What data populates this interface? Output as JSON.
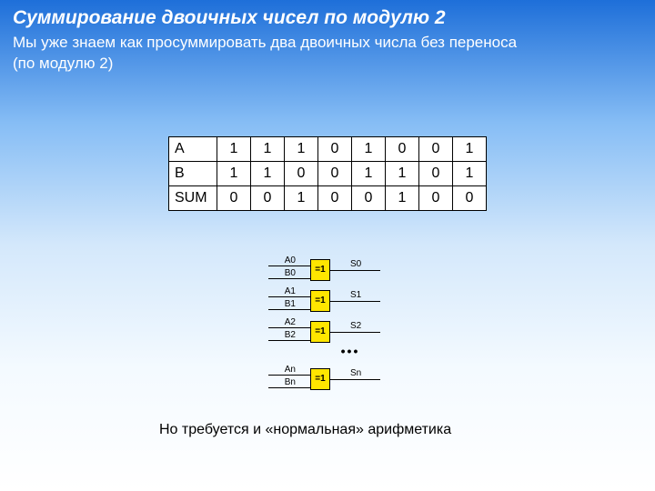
{
  "title": "Суммирование двоичных чисел по модулю 2",
  "intro_line1": "Мы уже знаем как просуммировать два двоичных числа без переноса",
  "intro_line2": "(по модулю 2)",
  "table": {
    "rows": [
      {
        "label": "A",
        "bits": [
          "1",
          "1",
          "1",
          "0",
          "1",
          "0",
          "0",
          "1"
        ]
      },
      {
        "label": "B",
        "bits": [
          "1",
          "1",
          "0",
          "0",
          "1",
          "1",
          "0",
          "1"
        ]
      },
      {
        "label": "SUM",
        "bits": [
          "0",
          "0",
          "1",
          "0",
          "0",
          "1",
          "0",
          "0"
        ]
      }
    ],
    "border_color": "#000000",
    "bg_color": "#ffffff",
    "font_size": 16
  },
  "diagram": {
    "gate_symbol": "=1",
    "gate_color": "#ffe600",
    "gates": [
      {
        "inA": "A0",
        "inB": "B0",
        "out": "S0"
      },
      {
        "inA": "A1",
        "inB": "B1",
        "out": "S1"
      },
      {
        "inA": "A2",
        "inB": "B2",
        "out": "S2"
      }
    ],
    "ellipsis": "•••",
    "last_gate": {
      "inA": "An",
      "inB": "Bn",
      "out": "Sn"
    }
  },
  "footnote": "Но требуется и «нормальная» арифметика",
  "colors": {
    "title_text": "#ffffff",
    "body_text": "#000000",
    "bg_top": "#1e6fd9",
    "bg_bottom": "#ffffff"
  }
}
